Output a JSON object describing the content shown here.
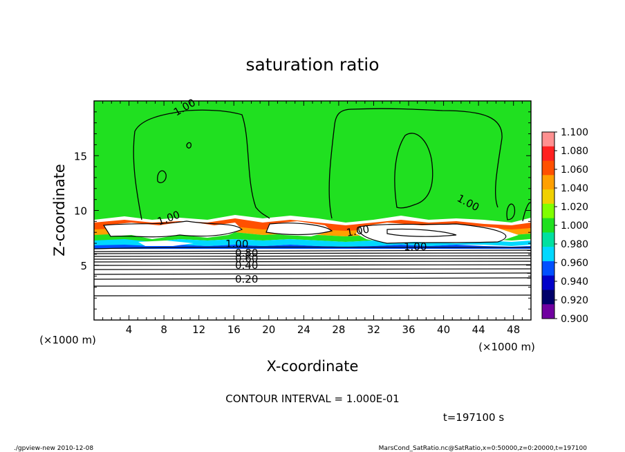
{
  "chart_data": {
    "type": "contour",
    "title": "saturation ratio",
    "xlabel": "X-coordinate",
    "ylabel": "Z-coordinate",
    "x_unit": "(×1000 m)",
    "z_unit": "(×1000 m)",
    "xlim": [
      0,
      50
    ],
    "ylim": [
      0,
      20
    ],
    "x_ticks": [
      "4",
      "8",
      "12",
      "16",
      "20",
      "24",
      "28",
      "32",
      "36",
      "40",
      "44",
      "48"
    ],
    "y_ticks": [
      "5",
      "10",
      "15"
    ],
    "colorbar": {
      "levels": [
        "1.100",
        "1.080",
        "1.060",
        "1.040",
        "1.020",
        "1.000",
        "0.980",
        "0.960",
        "0.940",
        "0.920",
        "0.900"
      ],
      "colors": [
        "#ff9090",
        "#ff2020",
        "#ff5000",
        "#ffa000",
        "#f0d000",
        "#80ff00",
        "#20e020",
        "#00e0a0",
        "#00d8ff",
        "#0050ff",
        "#0000c8",
        "#00006a",
        "#7000a0"
      ]
    },
    "contour_labels": [
      "1.00",
      "1.00",
      "1.00",
      "1.00",
      "1.00",
      "1.00",
      "0.80",
      "0.60",
      "0.40",
      "0.20"
    ],
    "contour_interval_label": "CONTOUR INTERVAL = 1.000E-01",
    "time_label": "t=197100 s"
  },
  "footer": {
    "left": "./gpview-new  2010-12-08",
    "right": "MarsCond_SatRatio.nc@SatRatio,x=0:50000,z=0:20000,t=197100"
  }
}
